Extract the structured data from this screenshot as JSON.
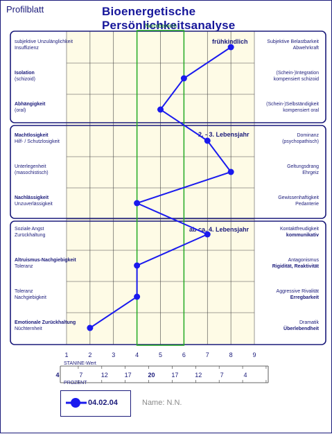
{
  "header": {
    "sheet_label": "Profilblatt",
    "title": "Bioenergetische Persönlichkeitsanalyse",
    "norm_label": "Normbereich"
  },
  "rows": [
    {
      "left_main": "subjektive Unzulänglichkeit",
      "left_sub": "Insuffizienz",
      "right_main": "Subjektive Belastbarkeit",
      "right_sub": "Abwehrkraft",
      "left_bold": false,
      "right_bold": false
    },
    {
      "left_main": "Isolation",
      "left_sub": "(schizoid)",
      "right_main": "(Schein-)Integration",
      "right_sub": "kompensiert schizoid",
      "left_bold": true,
      "right_bold": false
    },
    {
      "left_main": "Abhängigkeit",
      "left_sub": "(oral)",
      "right_main": "(Schein-)Selbständigkeit",
      "right_sub": "kompensiert oral",
      "left_bold": true,
      "right_bold": false
    },
    {
      "left_main": "Machtlosigkeit",
      "left_sub": "Hilf- / Schutzlosigkeit",
      "right_main": "Dominanz",
      "right_sub": "(psychopathisch)",
      "left_bold": true,
      "right_bold": false
    },
    {
      "left_main": "Unterlegenheit",
      "left_sub": "(masochistisch)",
      "right_main": "Geltungsdrang",
      "right_sub": "Ehrgeiz",
      "left_bold": false,
      "right_bold": false
    },
    {
      "left_main": "Nachlässigkeit",
      "left_sub": "Unzuverlässigkeit",
      "right_main": "Gewissenhaftigkeit",
      "right_sub": "Pedanterie",
      "left_bold": true,
      "right_bold": false
    },
    {
      "left_main": "Soziale Angst",
      "left_sub": "Zurückhaltung",
      "right_main": "Kontaktfreudigkeit",
      "right_sub": "kommunikativ",
      "left_bold": false,
      "right_bold": true
    },
    {
      "left_main": "Altruismus-Nachgiebigkeit",
      "left_sub": "Toleranz",
      "right_main": "Antagonismus",
      "right_sub": "Rigidität, Reaktivität",
      "left_bold": true,
      "right_bold": true
    },
    {
      "left_main": "Toleranz",
      "left_sub": "Nachgiebigkeit",
      "right_main": "Aggressive Rivalität",
      "right_sub": "Erregbarkeit",
      "left_bold": false,
      "right_bold": true
    },
    {
      "left_main": "Emotionale Zurückhaltung",
      "left_sub": "Nüchternheit",
      "right_main": "Dramatik",
      "right_sub": "Überlebendheit",
      "left_bold": true,
      "right_bold": true
    }
  ],
  "section_labels": [
    "frühkindlich",
    "2. - 3. Lebensjahr",
    "ab ca. 4. Lebensjahr"
  ],
  "scale": {
    "stanine_caption": "STANINE-Wert",
    "prozent_caption": "PROZENT",
    "stanine_ticks": [
      "1",
      "2",
      "3",
      "4",
      "5",
      "6",
      "7",
      "8",
      "9"
    ],
    "percent_values": [
      "4",
      "7",
      "12",
      "17",
      "20",
      "17",
      "12",
      "7",
      "4"
    ]
  },
  "legend": {
    "date": "04.02.04",
    "name": "Name:  N.N."
  },
  "colors": {
    "line": "#1a1aee",
    "frame": "#1a1a7a",
    "grid_fill": "#fefbe6",
    "norm_border": "#22aa22"
  },
  "chart_data": {
    "type": "line",
    "title": "Bioenergetische Persönlichkeitsanalyse",
    "xlabel": "STANINE-Wert",
    "xlim": [
      1,
      9
    ],
    "categories": [
      "subjektive Unzulänglichkeit",
      "Isolation",
      "Abhängigkeit",
      "Machtlosigkeit",
      "Unterlegenheit",
      "Nachlässigkeit",
      "Soziale Angst",
      "Altruismus-Nachgiebigkeit",
      "Toleranz",
      "Emotionale Zurückhaltung"
    ],
    "norm_range": [
      4,
      6
    ],
    "series": [
      {
        "name": "04.02.04",
        "values": [
          8,
          6,
          5,
          7,
          8,
          4,
          7,
          4,
          4,
          2
        ]
      }
    ]
  }
}
